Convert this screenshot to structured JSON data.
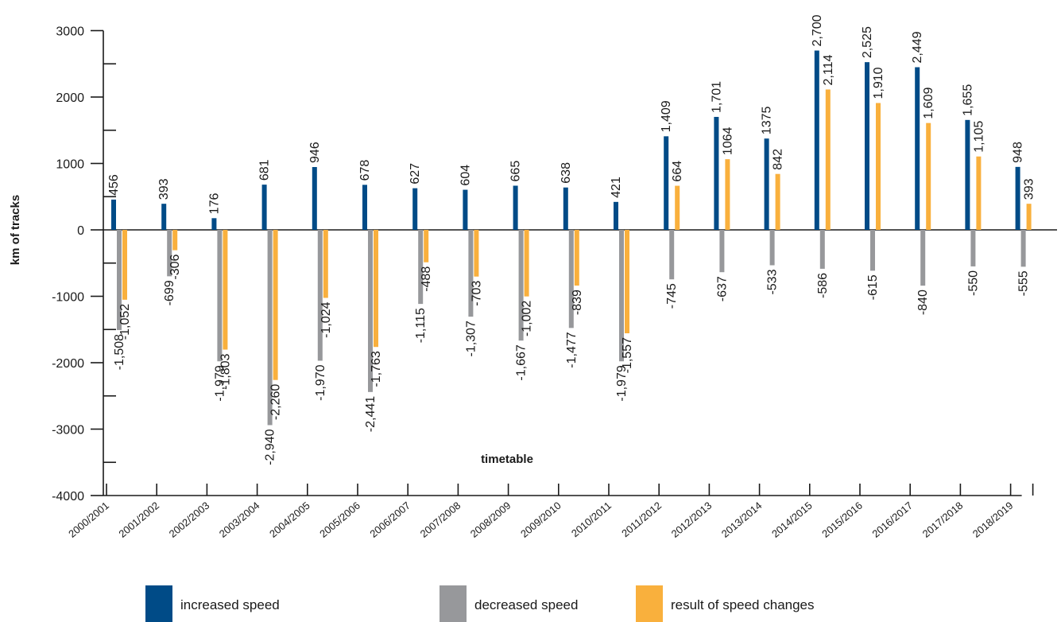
{
  "chart_data": {
    "type": "bar",
    "ylabel": "km of tracks",
    "xlabel": "timetable",
    "ylim": [
      -4000,
      3000
    ],
    "yticks": [
      3000,
      2000,
      1000,
      0,
      -1000,
      -2000,
      -3000,
      -4000
    ],
    "grid": false,
    "legend_position": "bottom",
    "categories": [
      "2000/2001",
      "2001/2002",
      "2002/2003",
      "2003/2004",
      "2004/2005",
      "2005/2006",
      "2006/2007",
      "2007/2008",
      "2008/2009",
      "2009/2010",
      "2010/2011",
      "2011/2012",
      "2012/2013",
      "2013/2014",
      "2014/2015",
      "2015/2016",
      "2016/2017",
      "2017/2018",
      "2018/2019"
    ],
    "series": [
      {
        "name": "increased speed",
        "color": "#004b87",
        "values": [
          456,
          393,
          176,
          681,
          946,
          678,
          627,
          604,
          665,
          638,
          421,
          1409,
          1701,
          1375,
          2700,
          2525,
          2449,
          1655,
          948
        ],
        "labels": [
          "456",
          "393",
          "176",
          "681",
          "946",
          "678",
          "627",
          "604",
          "665",
          "638",
          "421",
          "1,409",
          "1,701",
          "1375",
          "2,700",
          "2,525",
          "2,449",
          "1,655",
          "948"
        ]
      },
      {
        "name": "decreased speed",
        "color": "#97989b",
        "values": [
          -1508,
          -699,
          -1979,
          -2940,
          -1970,
          -2441,
          -1115,
          -1307,
          -1667,
          -1477,
          -1979,
          -745,
          -637,
          -533,
          -586,
          -615,
          -840,
          -550,
          -555
        ],
        "labels": [
          "-1,508",
          "-699",
          "-1,979",
          "-2,940",
          "-1,970",
          "-2,441",
          "-1,115",
          "-1,307",
          "-1,667",
          "-1,477",
          "-1,979",
          "-745",
          "-637",
          "-533",
          "-586",
          "-615",
          "-840",
          "-550",
          "-555"
        ]
      },
      {
        "name": "result of speed changes",
        "color": "#f9b03d",
        "values": [
          -1052,
          -306,
          -1803,
          -2260,
          -1024,
          -1763,
          -488,
          -703,
          -1002,
          -839,
          -1557,
          664,
          1064,
          842,
          2114,
          1910,
          1609,
          1105,
          393
        ],
        "labels": [
          "-1,052",
          "-306",
          "-1,803",
          "-2,260",
          "-1,024",
          "-1,763",
          "-488",
          "-703",
          "-1,002",
          "-839",
          "-1,557",
          "664",
          "1064",
          "842",
          "2,114",
          "1,910",
          "1,609",
          "1,105",
          "393"
        ]
      }
    ]
  }
}
